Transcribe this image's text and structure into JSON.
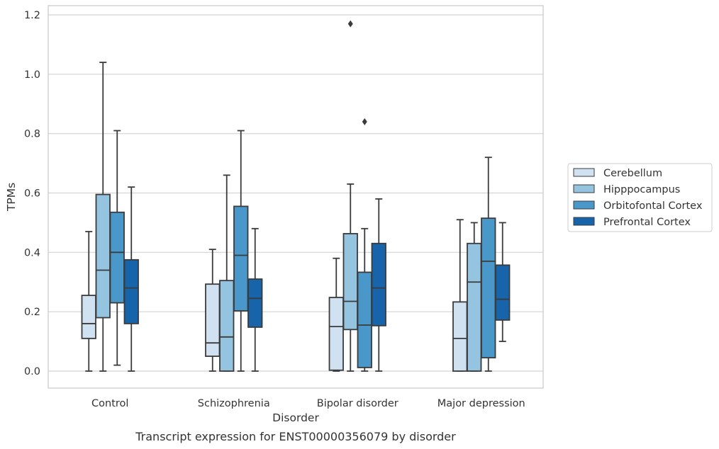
{
  "chart_data": {
    "type": "box",
    "title": "",
    "caption": "Transcript expression for ENST00000356079 by disorder",
    "xlabel": "Disorder",
    "ylabel": "TPMs",
    "ylim": [
      -0.057,
      1.23
    ],
    "yticks": [
      "0.0",
      "0.2",
      "0.4",
      "0.6",
      "0.8",
      "1.0",
      "1.2"
    ],
    "ytick_values": [
      0,
      0.2,
      0.4,
      0.6,
      0.8,
      1.0,
      1.2
    ],
    "grid": "horizontal",
    "legend_placement": "right",
    "categories": [
      "Control",
      "Schizophrenia",
      "Bipolar disorder",
      "Major depression"
    ],
    "series": [
      {
        "name": "Cerebellum",
        "color": "#d0e1f2",
        "boxes": [
          {
            "whisker_low": 0.0,
            "q1": 0.11,
            "median": 0.16,
            "q3": 0.255,
            "whisker_high": 0.47,
            "outliers": []
          },
          {
            "whisker_low": 0.0,
            "q1": 0.05,
            "median": 0.095,
            "q3": 0.293,
            "whisker_high": 0.41,
            "outliers": []
          },
          {
            "whisker_low": 0.0,
            "q1": 0.003,
            "median": 0.15,
            "q3": 0.248,
            "whisker_high": 0.38,
            "outliers": []
          },
          {
            "whisker_low": 0.0,
            "q1": 0.0,
            "median": 0.11,
            "q3": 0.233,
            "whisker_high": 0.51,
            "outliers": []
          }
        ]
      },
      {
        "name": "Hipppocampus",
        "color": "#94c4df",
        "boxes": [
          {
            "whisker_low": 0.0,
            "q1": 0.18,
            "median": 0.34,
            "q3": 0.595,
            "whisker_high": 1.04,
            "outliers": []
          },
          {
            "whisker_low": 0.0,
            "q1": 0.0,
            "median": 0.115,
            "q3": 0.305,
            "whisker_high": 0.66,
            "outliers": []
          },
          {
            "whisker_low": 0.0,
            "q1": 0.14,
            "median": 0.235,
            "q3": 0.463,
            "whisker_high": 0.63,
            "outliers": [
              1.17
            ]
          },
          {
            "whisker_low": 0.0,
            "q1": 0.0,
            "median": 0.3,
            "q3": 0.43,
            "whisker_high": 0.5,
            "outliers": []
          }
        ]
      },
      {
        "name": "Orbitofontal Cortex",
        "color": "#4a98c9",
        "boxes": [
          {
            "whisker_low": 0.02,
            "q1": 0.23,
            "median": 0.4,
            "q3": 0.535,
            "whisker_high": 0.81,
            "outliers": []
          },
          {
            "whisker_low": 0.0,
            "q1": 0.203,
            "median": 0.39,
            "q3": 0.555,
            "whisker_high": 0.81,
            "outliers": []
          },
          {
            "whisker_low": 0.0,
            "q1": 0.012,
            "median": 0.155,
            "q3": 0.333,
            "whisker_high": 0.48,
            "outliers": [
              0.84
            ]
          },
          {
            "whisker_low": 0.0,
            "q1": 0.045,
            "median": 0.37,
            "q3": 0.515,
            "whisker_high": 0.72,
            "outliers": []
          }
        ]
      },
      {
        "name": "Prefrontal Cortex",
        "color": "#1764ab",
        "boxes": [
          {
            "whisker_low": 0.0,
            "q1": 0.16,
            "median": 0.28,
            "q3": 0.375,
            "whisker_high": 0.62,
            "outliers": []
          },
          {
            "whisker_low": 0.0,
            "q1": 0.148,
            "median": 0.245,
            "q3": 0.31,
            "whisker_high": 0.48,
            "outliers": []
          },
          {
            "whisker_low": 0.0,
            "q1": 0.153,
            "median": 0.28,
            "q3": 0.43,
            "whisker_high": 0.58,
            "outliers": []
          },
          {
            "whisker_low": 0.1,
            "q1": 0.172,
            "median": 0.242,
            "q3": 0.357,
            "whisker_high": 0.5,
            "outliers": []
          }
        ]
      }
    ]
  }
}
